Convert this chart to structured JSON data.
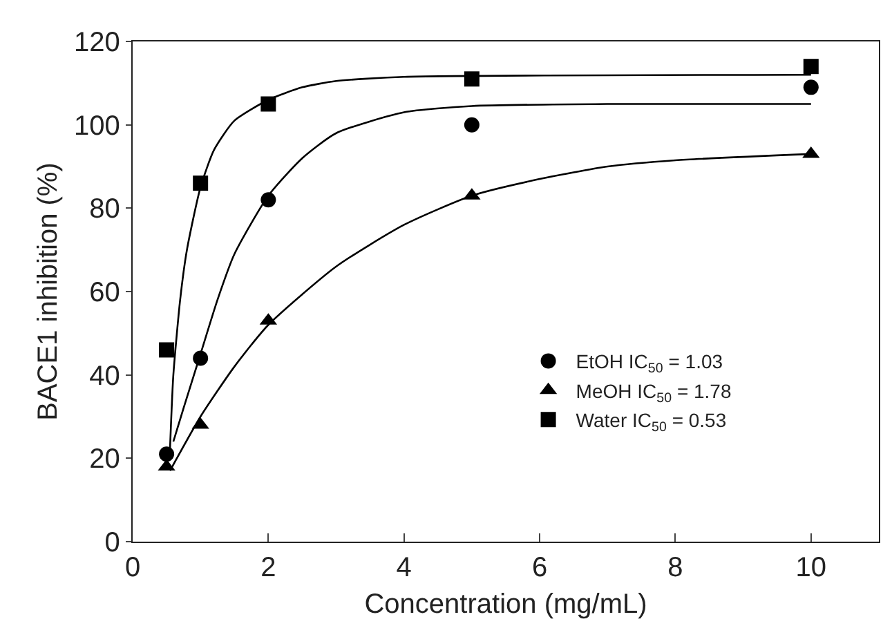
{
  "chart_data": {
    "type": "scatter",
    "xlabel": "Concentration (mg/mL)",
    "ylabel": "BACE1 inhibition (%)",
    "x": [
      0.5,
      1,
      2,
      5,
      10
    ],
    "series": [
      {
        "name": "EtOH IC$_{50}$ = 1.03",
        "color": "#000000",
        "marker": "circle",
        "values": [
          21,
          44,
          82,
          100,
          109
        ]
      },
      {
        "name": "MeOH IC$_{50}$ = 1.78",
        "color": "#000000",
        "marker": "triangle",
        "values": [
          18,
          28,
          53,
          83,
          93
        ]
      },
      {
        "name": "Water IC$_{50}$ = 0.53",
        "color": "#000000",
        "marker": "square",
        "values": [
          46,
          86,
          105,
          111,
          114
        ]
      },
      {
        "type": "line",
        "color": "#000000",
        "x": [
          0.6,
          0.75,
          1,
          1.25,
          1.5,
          2,
          2.5,
          3,
          4,
          5,
          7,
          10
        ],
        "values": [
          24,
          32,
          45,
          58,
          69,
          83,
          92,
          98,
          103,
          104.5,
          105,
          105
        ]
      },
      {
        "type": "line",
        "color": "#000000",
        "x": [
          0.55,
          1,
          1.5,
          2,
          3,
          4,
          5,
          6,
          7,
          8,
          10
        ],
        "values": [
          17,
          30,
          42,
          52,
          66,
          76,
          83,
          87,
          90,
          91.5,
          93
        ]
      },
      {
        "type": "line",
        "color": "#000000",
        "x": [
          0.55,
          0.6,
          0.7,
          0.8,
          1,
          1.2,
          1.5,
          2,
          2.5,
          3,
          4,
          10
        ],
        "values": [
          22,
          40,
          58,
          70,
          85,
          94,
          101,
          106,
          109,
          110.5,
          111.5,
          112
        ]
      }
    ],
    "xlim": [
      0,
      11
    ],
    "xticks": [
      0,
      2,
      4,
      6,
      8,
      10
    ],
    "ylim": [
      0,
      120
    ],
    "yticks": [
      0,
      20,
      40,
      60,
      80,
      100,
      120
    ],
    "grid": false,
    "legend": "bottom right",
    "line_style": "solid"
  }
}
